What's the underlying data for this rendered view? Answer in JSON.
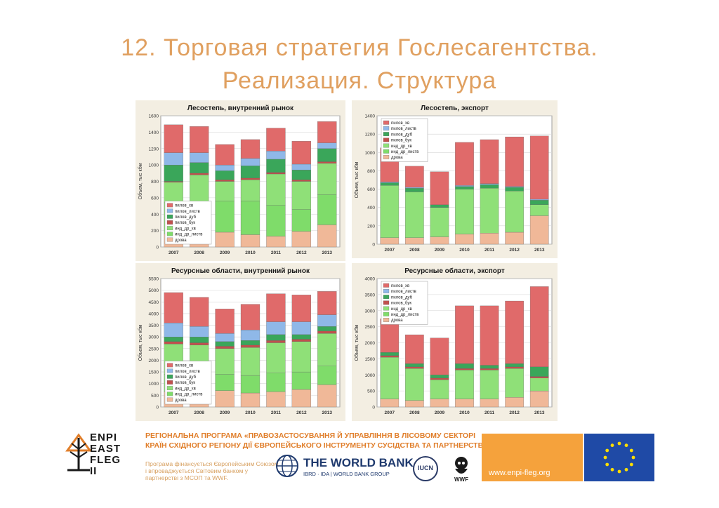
{
  "slide": {
    "title_line1": "12. Торговая стратегия Гослесагентства.",
    "title_line2": "Реализация. Структура"
  },
  "chart_data": [
    {
      "type": "bar",
      "stacked": true,
      "title": "Лесостепь, внутренний рынок",
      "ylabel": "Объем, тыс кбм",
      "xlabel": "",
      "ylim": [
        0,
        1600
      ],
      "yticks": [
        0,
        200,
        400,
        600,
        800,
        1000,
        1200,
        1400,
        1600
      ],
      "categories": [
        "2007",
        "2008",
        "2009",
        "2010",
        "2011",
        "2012",
        "2013"
      ],
      "legend": "bottom-left",
      "grid": true,
      "series": [
        {
          "name": "дрова",
          "values": [
            160,
            170,
            180,
            150,
            130,
            190,
            270
          ]
        },
        {
          "name": "инд_др_листв",
          "values": [
            380,
            350,
            380,
            410,
            380,
            270,
            370
          ]
        },
        {
          "name": "инд_др_хв",
          "values": [
            250,
            360,
            240,
            260,
            380,
            340,
            380
          ]
        },
        {
          "name": "пилов_бук",
          "values": [
            10,
            20,
            20,
            20,
            20,
            20,
            20
          ]
        },
        {
          "name": "пилов_дуб",
          "values": [
            200,
            130,
            110,
            150,
            160,
            120,
            160
          ]
        },
        {
          "name": "пилов_листв",
          "values": [
            150,
            120,
            70,
            90,
            100,
            70,
            70
          ]
        },
        {
          "name": "пилов_хв",
          "values": [
            340,
            320,
            250,
            230,
            280,
            280,
            260
          ]
        }
      ],
      "colors": [
        "#f0b898",
        "#7fdc6a",
        "#8fe078",
        "#c0504d",
        "#3aa65a",
        "#8fb8e8",
        "#e06a6a"
      ]
    },
    {
      "type": "bar",
      "stacked": true,
      "title": "Лесостепь, экспорт",
      "ylabel": "Объем, тыс кбм",
      "xlabel": "",
      "ylim": [
        0,
        1400
      ],
      "yticks": [
        0,
        200,
        400,
        600,
        800,
        1000,
        1200,
        1400
      ],
      "categories": [
        "2007",
        "2008",
        "2009",
        "2010",
        "2011",
        "2012",
        "2013"
      ],
      "legend": "top-left",
      "grid": true,
      "series": [
        {
          "name": "дрова",
          "values": [
            70,
            70,
            80,
            110,
            120,
            130,
            310
          ]
        },
        {
          "name": "инд_др_листв",
          "values": [
            0,
            0,
            0,
            0,
            0,
            0,
            0
          ]
        },
        {
          "name": "инд_др_хв",
          "values": [
            570,
            500,
            320,
            490,
            490,
            450,
            120
          ]
        },
        {
          "name": "пилов_бук",
          "values": [
            0,
            0,
            0,
            0,
            0,
            0,
            0
          ]
        },
        {
          "name": "пилов_дуб",
          "values": [
            30,
            40,
            30,
            30,
            40,
            40,
            50
          ]
        },
        {
          "name": "пилов_листв",
          "values": [
            10,
            10,
            0,
            10,
            10,
            10,
            10
          ]
        },
        {
          "name": "пилов_хв",
          "values": [
            370,
            230,
            360,
            470,
            480,
            540,
            690
          ]
        }
      ],
      "colors": [
        "#f0b898",
        "#7fdc6a",
        "#8fe078",
        "#c0504d",
        "#3aa65a",
        "#8fb8e8",
        "#e06a6a"
      ]
    },
    {
      "type": "bar",
      "stacked": true,
      "title": "Ресурсные области, внутренний рынок",
      "ylabel": "Объем, тыс кбм",
      "xlabel": "",
      "ylim": [
        0,
        5500
      ],
      "yticks": [
        0,
        500,
        1000,
        1500,
        2000,
        2500,
        3000,
        3500,
        4000,
        4500,
        5000,
        5500
      ],
      "categories": [
        "2007",
        "2008",
        "2009",
        "2010",
        "2011",
        "2012",
        "2013"
      ],
      "legend": "bottom-left",
      "grid": true,
      "series": [
        {
          "name": "дрова",
          "values": [
            650,
            600,
            700,
            600,
            650,
            750,
            950
          ]
        },
        {
          "name": "инд_др_листв",
          "values": [
            750,
            700,
            700,
            750,
            800,
            750,
            800
          ]
        },
        {
          "name": "инд_др_хв",
          "values": [
            1300,
            1350,
            1100,
            1200,
            1300,
            1300,
            1400
          ]
        },
        {
          "name": "пилов_бук",
          "values": [
            100,
            100,
            100,
            100,
            100,
            100,
            100
          ]
        },
        {
          "name": "пилов_дуб",
          "values": [
            200,
            250,
            200,
            200,
            250,
            200,
            200
          ]
        },
        {
          "name": "пилов_листв",
          "values": [
            600,
            450,
            350,
            450,
            550,
            550,
            500
          ]
        },
        {
          "name": "пилов_хв",
          "values": [
            1300,
            1250,
            1050,
            1100,
            1200,
            1150,
            1000
          ]
        }
      ],
      "colors": [
        "#f0b898",
        "#7fdc6a",
        "#8fe078",
        "#c0504d",
        "#3aa65a",
        "#8fb8e8",
        "#e06a6a"
      ]
    },
    {
      "type": "bar",
      "stacked": true,
      "title": "Ресурсные области, экспорт",
      "ylabel": "Объем, тыс кбм",
      "xlabel": "",
      "ylim": [
        0,
        4000
      ],
      "yticks": [
        0,
        500,
        1000,
        1500,
        2000,
        2500,
        3000,
        3500,
        4000
      ],
      "categories": [
        "2007",
        "2008",
        "2009",
        "2010",
        "2011",
        "2012",
        "2013"
      ],
      "legend": "top-left",
      "grid": true,
      "series": [
        {
          "name": "дрова",
          "values": [
            250,
            200,
            250,
            250,
            250,
            300,
            500
          ]
        },
        {
          "name": "инд_др_листв",
          "values": [
            0,
            0,
            0,
            0,
            0,
            0,
            0
          ]
        },
        {
          "name": "инд_др_хв",
          "values": [
            1300,
            1000,
            600,
            900,
            900,
            900,
            400
          ]
        },
        {
          "name": "пилов_бук",
          "values": [
            50,
            50,
            50,
            50,
            50,
            50,
            50
          ]
        },
        {
          "name": "пилов_дуб",
          "values": [
            100,
            100,
            100,
            150,
            100,
            100,
            300
          ]
        },
        {
          "name": "пилов_листв",
          "values": [
            0,
            0,
            0,
            0,
            0,
            0,
            0
          ]
        },
        {
          "name": "пилов_хв",
          "values": [
            1050,
            900,
            1150,
            1800,
            1850,
            1950,
            2500
          ]
        }
      ],
      "colors": [
        "#f0b898",
        "#7fdc6a",
        "#8fe078",
        "#c0504d",
        "#3aa65a",
        "#8fb8e8",
        "#e06a6a"
      ]
    }
  ],
  "footer": {
    "logo_text": [
      "ENPI",
      "EAST",
      "FLEG",
      "II"
    ],
    "program": "РЕГІОНАЛЬНА ПРОГРАМА «ПРАВОЗАСТОСУВАННЯ Й УПРАВЛІННЯ В ЛІСОВОМУ СЕКТОРІ КРАЇН СХІДНОГО РЕГІОНУ ДІЇ ЄВРОПЕЙСЬКОГО ІНСТРУМЕНТУ СУСІДСТВА ТА ПАРТНЕРСТВА»",
    "funding": "Програма фінансується Європейським Союзом і впроваджується Світовим банком у партнерстві з МСОП та WWF.",
    "wb_name": "THE WORLD BANK",
    "wb_sub": "IBRD · IDA | WORLD BANK GROUP",
    "iucn": "IUCN",
    "wwf": "WWF",
    "site": "www.enpi-fleg.org"
  }
}
